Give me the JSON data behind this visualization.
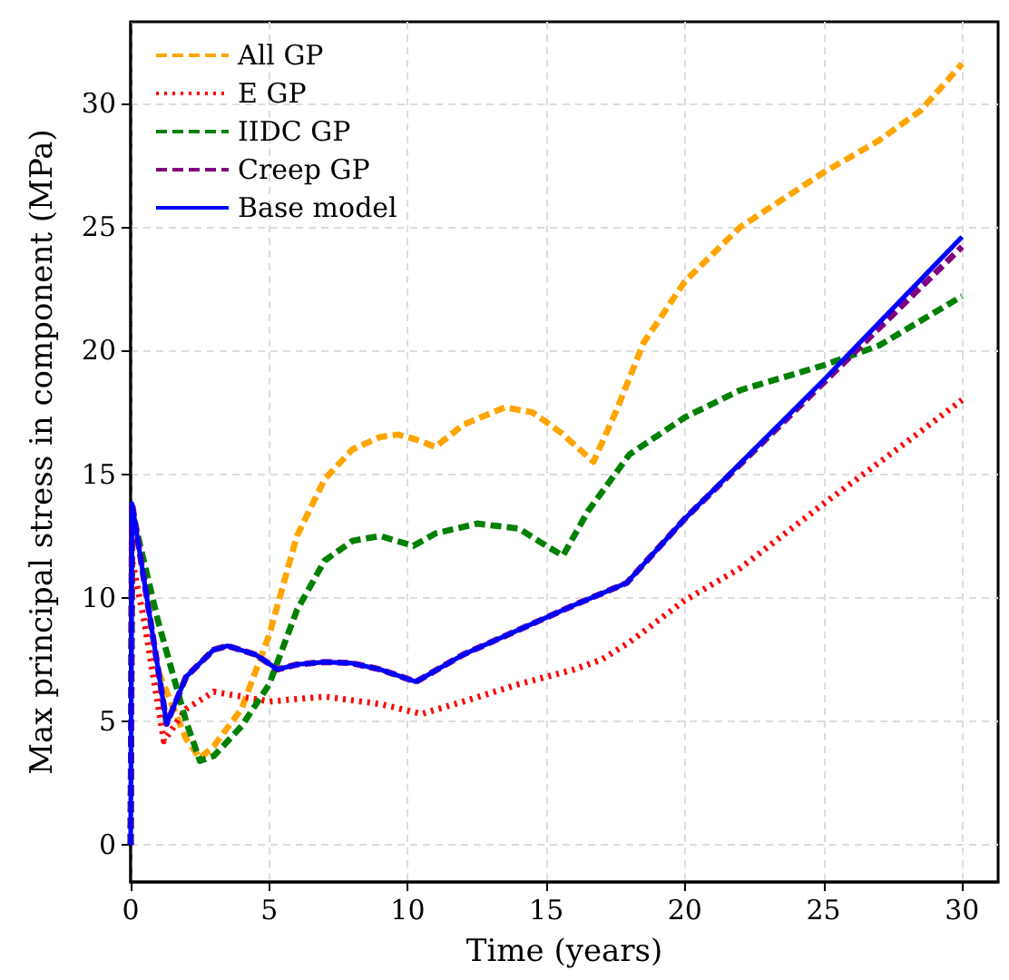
{
  "chart_data": {
    "type": "line",
    "xlabel": "Time (years)",
    "ylabel": "Max principal stress in component (MPa)",
    "xlim": [
      0,
      31.3
    ],
    "ylim": [
      -1.5,
      33.3
    ],
    "xticks": [
      0,
      5,
      10,
      15,
      20,
      25,
      30
    ],
    "yticks": [
      0,
      5,
      10,
      15,
      20,
      25,
      30
    ],
    "grid": true,
    "legend": "top left",
    "marker": "none",
    "series": [
      {
        "name": "All GP",
        "color": "#ffa500",
        "line_style": "dashed",
        "x": [
          1,
          2,
          2.5,
          3,
          4,
          5,
          6,
          7,
          8,
          9,
          9.65,
          10.3,
          11,
          12,
          13.5,
          14.5,
          15.5,
          16.7,
          17.5,
          18.5,
          20,
          22,
          25,
          27,
          28.5,
          30
        ],
        "values": [
          7,
          4.3,
          3.5,
          4,
          5.5,
          8.5,
          12.5,
          14.8,
          16,
          16.5,
          16.6,
          16.4,
          16.1,
          17,
          17.7,
          17.5,
          16.7,
          15.5,
          17.5,
          20.3,
          22.8,
          25,
          27.2,
          28.5,
          29.7,
          31.6
        ]
      },
      {
        "name": "E GP",
        "color": "#ff0000",
        "line_style": "dotted",
        "x": [
          0,
          0.05,
          0.5,
          1.2,
          2,
          3,
          4,
          5,
          7,
          9,
          10.5,
          12,
          14,
          16,
          17,
          18,
          20,
          22,
          25,
          28,
          30
        ],
        "values": [
          0,
          11.5,
          9,
          4.2,
          5.5,
          6.2,
          6,
          5.8,
          6,
          5.7,
          5.3,
          5.8,
          6.5,
          7.1,
          7.5,
          8.2,
          9.9,
          11.2,
          13.8,
          16.3,
          18
        ]
      },
      {
        "name": "IIDC GP",
        "color": "#008000",
        "line_style": "dashed",
        "x": [
          0,
          0.05,
          1,
          2,
          2.5,
          3,
          4,
          5,
          6,
          7,
          8,
          9,
          10.2,
          11,
          12.5,
          14,
          15,
          15.6,
          16.5,
          18,
          20,
          22,
          25,
          27,
          30
        ],
        "values": [
          0,
          13.5,
          9,
          5,
          3.4,
          3.6,
          4.8,
          6.5,
          9.5,
          11.5,
          12.3,
          12.5,
          12.1,
          12.6,
          13,
          12.8,
          12.1,
          11.7,
          13.5,
          15.8,
          17.3,
          18.4,
          19.4,
          20.2,
          22.2
        ]
      },
      {
        "name": "Creep GP",
        "color": "#800080",
        "line_style": "dashed",
        "x": [
          0,
          0.05,
          1.3,
          2,
          3,
          3.5,
          4.5,
          5.3,
          6,
          7,
          8,
          9,
          10.3,
          12,
          14,
          16,
          17.9,
          20,
          25,
          30
        ],
        "values": [
          0,
          13.8,
          4.9,
          6.8,
          7.9,
          8.05,
          7.7,
          7.1,
          7.3,
          7.4,
          7.35,
          7.1,
          6.6,
          7.7,
          8.7,
          9.7,
          10.6,
          13.2,
          18.7,
          24.2
        ]
      },
      {
        "name": "Base model",
        "color": "#0000ff",
        "line_style": "solid",
        "x": [
          0,
          0.05,
          1.3,
          2,
          3,
          3.5,
          4.5,
          5.3,
          6,
          7,
          8,
          9,
          10.3,
          12,
          14,
          16,
          17.9,
          20,
          25,
          30
        ],
        "values": [
          0,
          13.8,
          4.9,
          6.8,
          7.9,
          8.05,
          7.7,
          7.1,
          7.3,
          7.4,
          7.35,
          7.1,
          6.6,
          7.7,
          8.7,
          9.7,
          10.6,
          13.2,
          18.8,
          24.6
        ]
      }
    ]
  }
}
